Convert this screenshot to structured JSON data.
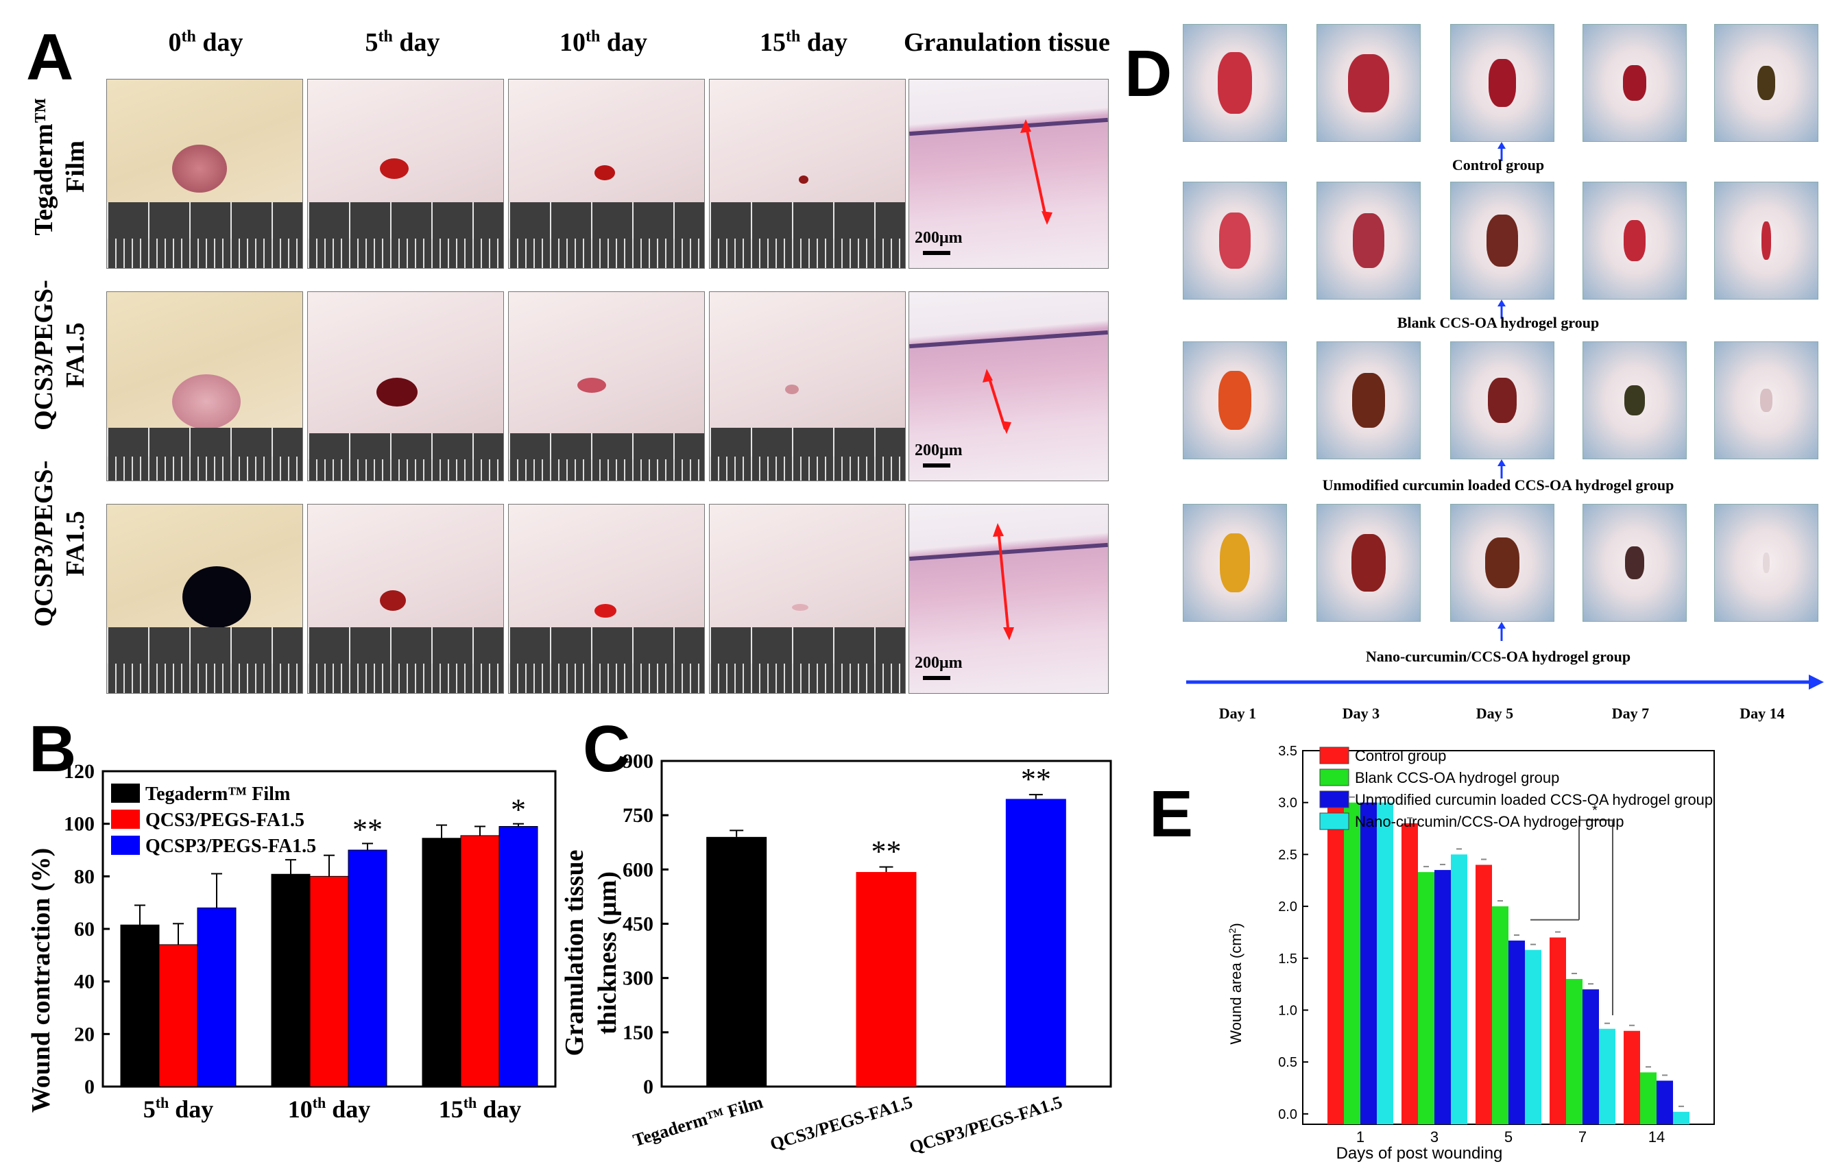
{
  "panel_a": {
    "letter": "A",
    "col_headers": [
      {
        "base": "0",
        "sup": "th",
        "rest": " day"
      },
      {
        "base": "5",
        "sup": "th",
        "rest": " day"
      },
      {
        "base": "10",
        "sup": "th",
        "rest": " day"
      },
      {
        "base": "15",
        "sup": "th",
        "rest": " day"
      },
      {
        "base": "Granulation tissue",
        "sup": "",
        "rest": ""
      }
    ],
    "row_headers": [
      {
        "line1": "Tegaderm™",
        "line2": "Film"
      },
      {
        "line1": "QCS3/PEGS-",
        "line2": "FA1.5"
      },
      {
        "line1": "QCSP3/PEGS-",
        "line2": "FA1.5"
      }
    ],
    "scale_label": "200μm"
  },
  "panel_d": {
    "letter": "D",
    "groups": [
      "Control group",
      "Blank CCS-OA hydrogel group",
      "Unmodified curcumin loaded CCS-OA hydrogel group",
      "Nano-curcumin/CCS-OA hydrogel group"
    ],
    "days": [
      "Day 1",
      "Day 3",
      "Day 5",
      "Day 7",
      "Day 14"
    ]
  },
  "chart_data": [
    {
      "id": "B",
      "type": "bar",
      "title": "",
      "ylabel": "Wound contraction (%)",
      "xlabel": "",
      "ylim": [
        0,
        120
      ],
      "yticks": [
        "0",
        "20",
        "40",
        "60",
        "80",
        "100",
        "120"
      ],
      "categories": [
        {
          "base": "5",
          "sup": "th",
          "rest": " day"
        },
        {
          "base": "10",
          "sup": "th",
          "rest": " day"
        },
        {
          "base": "15",
          "sup": "th",
          "rest": " day"
        }
      ],
      "series": [
        {
          "name": "Tegaderm™ Film",
          "color": "#000000",
          "values": [
            61.5,
            80.8,
            94.5
          ],
          "errors": [
            7.5,
            5.5,
            5.0
          ],
          "sig": [
            "",
            "",
            ""
          ]
        },
        {
          "name": "QCS3/PEGS-FA1.5",
          "color": "#ff0000",
          "values": [
            54.0,
            80.0,
            95.5
          ],
          "errors": [
            8.0,
            8.0,
            3.5
          ],
          "sig": [
            "",
            "",
            ""
          ]
        },
        {
          "name": "QCSP3/PEGS-FA1.5",
          "color": "#0000ff",
          "values": [
            68.0,
            90.0,
            99.0
          ],
          "errors": [
            13.0,
            2.5,
            1.0
          ],
          "sig": [
            "",
            "**",
            "*"
          ]
        }
      ]
    },
    {
      "id": "C",
      "type": "bar",
      "title": "",
      "ylabel_lines": [
        "Granulation tissue",
        "thickness (μm)"
      ],
      "xlabel": "",
      "ylim": [
        0,
        900
      ],
      "yticks": [
        "0",
        "150",
        "300",
        "450",
        "600",
        "750",
        "900"
      ],
      "categories": [
        "Tegaderm™ Film",
        "QCS3/PEGS-FA1.5",
        "QCSP3/PEGS-FA1.5"
      ],
      "values": [
        690,
        593,
        795
      ],
      "errors": [
        18,
        14,
        12
      ],
      "colors": [
        "#000000",
        "#ff0000",
        "#0000ff"
      ],
      "sig": [
        "",
        "**",
        "**"
      ]
    },
    {
      "id": "E",
      "type": "bar",
      "title": "",
      "ylabel": "Wound area (cm",
      "ylabel_sup": "2",
      "ylabel_end": ")",
      "xlabel": "Days of post wounding",
      "ylim": [
        -0.1,
        3.5
      ],
      "yticks": [
        "0.0",
        "0.5",
        "1.0",
        "1.5",
        "2.0",
        "2.5",
        "3.0",
        "3.5"
      ],
      "categories": [
        "1",
        "3",
        "5",
        "7",
        "14"
      ],
      "series": [
        {
          "name": "Control group",
          "color": "#ff1a1a",
          "values": [
            3.0,
            2.8,
            2.4,
            1.7,
            0.8
          ]
        },
        {
          "name": "Blank CCS-OA hydrogel group",
          "color": "#22e022",
          "values": [
            3.0,
            2.33,
            2.0,
            1.3,
            0.4
          ]
        },
        {
          "name": "Unmodified curcumin loaded CCS-OA hydrogel group",
          "color": "#1010e0",
          "values": [
            3.0,
            2.35,
            1.67,
            1.2,
            0.32
          ]
        },
        {
          "name": "Nano-curcumin/CCS-OA hydrogel group",
          "color": "#22e6e6",
          "values": [
            3.0,
            2.5,
            1.58,
            0.82,
            0.02
          ]
        }
      ],
      "sig_label": "*"
    }
  ]
}
